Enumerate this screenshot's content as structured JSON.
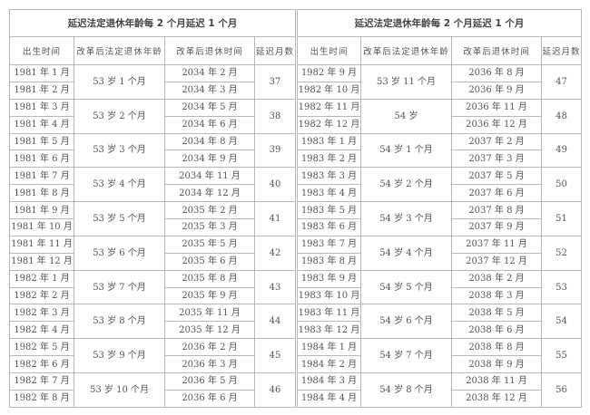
{
  "tables": [
    {
      "title": "延迟法定退休年龄每 2 个月延迟 1 个月",
      "headers": [
        "出生时间",
        "改革后法定退休年龄",
        "改革后退休时间",
        "延迟月数"
      ],
      "groups": [
        {
          "births": [
            "1981 年 1 月",
            "1981 年 2 月"
          ],
          "age": "53 岁 1 个月",
          "retire": [
            "2034 年 2 月",
            "2034 年 3 月"
          ],
          "delay": "37"
        },
        {
          "births": [
            "1981 年 3 月",
            "1981 年 4 月"
          ],
          "age": "53 岁 2 个月",
          "retire": [
            "2034 年 5 月",
            "2034 年 6 月"
          ],
          "delay": "38"
        },
        {
          "births": [
            "1981 年 5 月",
            "1981 年 6 月"
          ],
          "age": "53 岁 3 个月",
          "retire": [
            "2034 年 8 月",
            "2034 年 9 月"
          ],
          "delay": "39"
        },
        {
          "births": [
            "1981 年 7 月",
            "1981 年 8 月"
          ],
          "age": "53 岁 4 个月",
          "retire": [
            "2034 年 11 月",
            "2034 年 12 月"
          ],
          "delay": "40"
        },
        {
          "births": [
            "1981 年 9 月",
            "1981 年 10 月"
          ],
          "age": "53 岁 5 个月",
          "retire": [
            "2035 年 2 月",
            "2035 年 3 月"
          ],
          "delay": "41"
        },
        {
          "births": [
            "1981 年 11 月",
            "1981 年 12 月"
          ],
          "age": "53 岁 6 个月",
          "retire": [
            "2035 年 5 月",
            "2035 年 6 月"
          ],
          "delay": "42"
        },
        {
          "births": [
            "1982 年 1 月",
            "1982 年 2 月"
          ],
          "age": "53 岁 7 个月",
          "retire": [
            "2035 年 8 月",
            "2035 年 9 月"
          ],
          "delay": "43"
        },
        {
          "births": [
            "1982 年 3 月",
            "1982 年 4 月"
          ],
          "age": "53 岁 8 个月",
          "retire": [
            "2035 年 11 月",
            "2035 年 12 月"
          ],
          "delay": "44"
        },
        {
          "births": [
            "1982 年 5 月",
            "1982 年 6 月"
          ],
          "age": "53 岁 9 个月",
          "retire": [
            "2036 年 2 月",
            "2036 年 3 月"
          ],
          "delay": "45"
        },
        {
          "births": [
            "1982 年 7 月",
            "1982 年 8 月"
          ],
          "age": "53 岁 10 个月",
          "retire": [
            "2036 年 5 月",
            "2036 年 6 月"
          ],
          "delay": "46"
        }
      ]
    },
    {
      "title": "延迟法定退休年龄每 2 个月延迟 1 个月",
      "headers": [
        "出生时间",
        "改革后法定退休年龄",
        "改革后退休时间",
        "延迟月数"
      ],
      "groups": [
        {
          "births": [
            "1982 年 9 月",
            "1982 年 10 月"
          ],
          "age": "53 岁 11 个月",
          "retire": [
            "2036 年 8 月",
            "2036 年 9 月"
          ],
          "delay": "47"
        },
        {
          "births": [
            "1982 年 11 月",
            "1982 年 12 月"
          ],
          "age": "54 岁",
          "retire": [
            "2036 年 11 月",
            "2036 年 12 月"
          ],
          "delay": "48"
        },
        {
          "births": [
            "1983 年 1 月",
            "1983 年 2 月"
          ],
          "age": "54 岁 1 个月",
          "retire": [
            "2037 年 2 月",
            "2037 年 3 月"
          ],
          "delay": "49"
        },
        {
          "births": [
            "1983 年 3 月",
            "1983 年 4 月"
          ],
          "age": "54 岁 2 个月",
          "retire": [
            "2037 年 5 月",
            "2037 年 6 月"
          ],
          "delay": "50"
        },
        {
          "births": [
            "1983 年 5 月",
            "1983 年 6 月"
          ],
          "age": "54 岁 3 个月",
          "retire": [
            "2037 年 8 月",
            "2037 年 9 月"
          ],
          "delay": "51"
        },
        {
          "births": [
            "1983 年 7 月",
            "1983 年 8 月"
          ],
          "age": "54 岁 4 个月",
          "retire": [
            "2037 年 11 月",
            "2037 年 12 月"
          ],
          "delay": "52"
        },
        {
          "births": [
            "1983 年 9 月",
            "1983 年 10 月"
          ],
          "age": "54 岁 5 个月",
          "retire": [
            "2038 年 2 月",
            "2038 年 3 月"
          ],
          "delay": "53"
        },
        {
          "births": [
            "1983 年 11 月",
            "1983 年 12 月"
          ],
          "age": "54 岁 6 个月",
          "retire": [
            "2038 年 5 月",
            "2038 年 6 月"
          ],
          "delay": "54"
        },
        {
          "births": [
            "1984 年 1 月",
            "1984 年 2 月"
          ],
          "age": "54 岁 7 个月",
          "retire": [
            "2038 年 8 月",
            "2038 年 9 月"
          ],
          "delay": "55"
        },
        {
          "births": [
            "1984 年 3 月",
            "1984 年 4 月"
          ],
          "age": "54 岁 8 个月",
          "retire": [
            "2038 年 11 月",
            "2038 年 12 月"
          ],
          "delay": "56"
        }
      ]
    }
  ]
}
